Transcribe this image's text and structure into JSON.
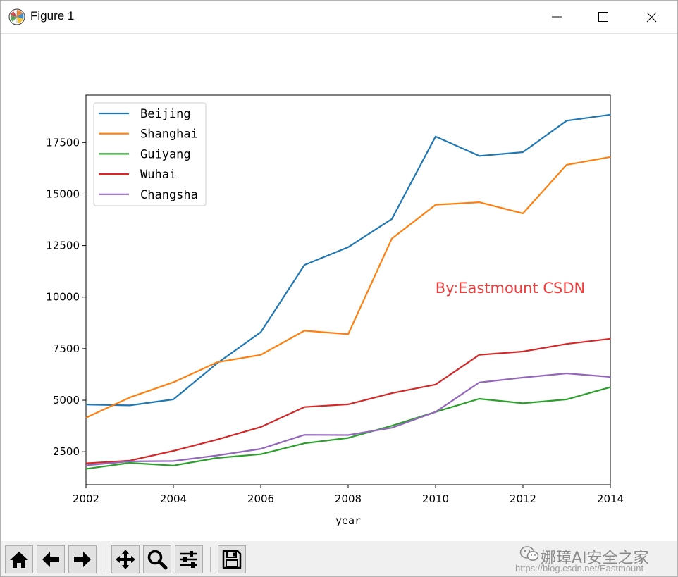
{
  "window": {
    "title": "Figure 1",
    "app_icon": "matplotlib-logo-icon",
    "controls": {
      "minimize": "minimize-icon",
      "maximize": "maximize-icon",
      "close": "close-icon"
    }
  },
  "toolbar": {
    "buttons": [
      {
        "name": "home-button",
        "icon": "home-icon"
      },
      {
        "name": "back-button",
        "icon": "arrow-left-icon"
      },
      {
        "name": "forward-button",
        "icon": "arrow-right-icon"
      },
      {
        "name": "pan-button",
        "icon": "move-icon"
      },
      {
        "name": "zoom-button",
        "icon": "magnifier-icon"
      },
      {
        "name": "configure-subplots-button",
        "icon": "sliders-icon"
      },
      {
        "name": "save-button",
        "icon": "floppy-disk-icon"
      }
    ]
  },
  "watermark": {
    "name": "娜璋AI安全之家",
    "url": "https://blog.csdn.net/Eastmount",
    "icon": "wechat-logo-icon"
  },
  "chart_data": {
    "type": "line",
    "title": "",
    "xlabel": "year",
    "ylabel": "",
    "x": [
      2002,
      2003,
      2004,
      2005,
      2006,
      2007,
      2008,
      2009,
      2010,
      2011,
      2012,
      2013,
      2014
    ],
    "xlim": [
      2002,
      2014
    ],
    "ylim": [
      900,
      19800
    ],
    "xticks": [
      2002,
      2004,
      2006,
      2008,
      2010,
      2012,
      2014
    ],
    "yticks": [
      2500,
      5000,
      7500,
      10000,
      12500,
      15000,
      17500
    ],
    "grid": false,
    "legend": "top-left",
    "annotation": {
      "text": "By:Eastmount CSDN",
      "x": 2011.7,
      "y": 10300,
      "color": "#f03c3c"
    },
    "series": [
      {
        "name": "Beijing",
        "color": "#1f77b4",
        "values": [
          4790,
          4750,
          5040,
          6790,
          8300,
          11560,
          12420,
          13790,
          17790,
          16850,
          17030,
          18560,
          18850
        ]
      },
      {
        "name": "Shanghai",
        "color": "#ff7f0e",
        "values": [
          4150,
          5130,
          5870,
          6840,
          7200,
          8370,
          8200,
          12840,
          14480,
          14600,
          14060,
          16420,
          16800
        ]
      },
      {
        "name": "Guiyang",
        "color": "#2ca02c",
        "values": [
          1670,
          1960,
          1830,
          2200,
          2380,
          2910,
          3170,
          3760,
          4430,
          5070,
          4850,
          5040,
          5630
        ]
      },
      {
        "name": "Wuhai",
        "color": "#d62728",
        "values": [
          1940,
          2070,
          2540,
          3090,
          3700,
          4670,
          4800,
          5340,
          5760,
          7200,
          7360,
          7730,
          7980
        ]
      },
      {
        "name": "Changsha",
        "color": "#9467bd",
        "values": [
          1840,
          2030,
          2050,
          2320,
          2640,
          3320,
          3310,
          3660,
          4430,
          5860,
          6100,
          6300,
          6130
        ]
      }
    ]
  }
}
